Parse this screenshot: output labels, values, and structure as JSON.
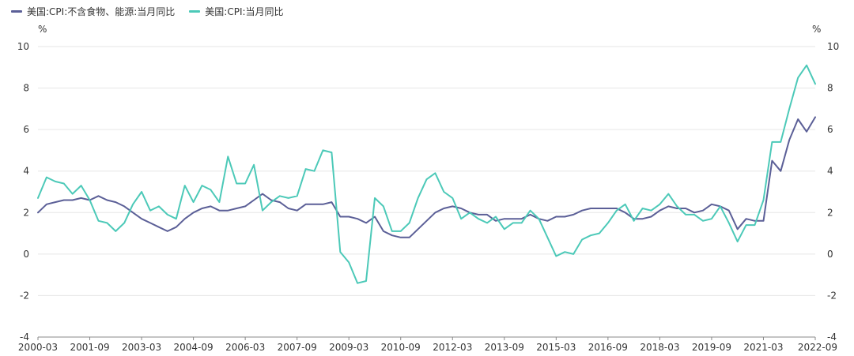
{
  "chart_data": {
    "type": "line",
    "title": "",
    "xlabel": "",
    "ylabel_left": "%",
    "ylabel_right": "%",
    "ylim": [
      -4,
      10
    ],
    "y_ticks": [
      -4,
      -2,
      0,
      2,
      4,
      6,
      8,
      10
    ],
    "x_ticks": [
      "2000-03",
      "2001-09",
      "2003-03",
      "2004-09",
      "2006-03",
      "2007-09",
      "2009-03",
      "2010-09",
      "2012-03",
      "2013-09",
      "2015-03",
      "2016-09",
      "2018-03",
      "2019-09",
      "2021-03",
      "2022-09"
    ],
    "x_range": [
      "2000-03",
      "2022-09"
    ],
    "legend_position": "top-left",
    "grid": true,
    "series": [
      {
        "name": "美国:CPI:不含食物、能源:当月同比",
        "color": "#5b5f97",
        "points": [
          [
            "2000-03",
            2.0
          ],
          [
            "2000-06",
            2.4
          ],
          [
            "2000-09",
            2.5
          ],
          [
            "2000-12",
            2.6
          ],
          [
            "2001-03",
            2.6
          ],
          [
            "2001-06",
            2.7
          ],
          [
            "2001-09",
            2.6
          ],
          [
            "2001-12",
            2.8
          ],
          [
            "2002-03",
            2.6
          ],
          [
            "2002-06",
            2.5
          ],
          [
            "2002-09",
            2.3
          ],
          [
            "2002-12",
            2.0
          ],
          [
            "2003-03",
            1.7
          ],
          [
            "2003-06",
            1.5
          ],
          [
            "2003-09",
            1.3
          ],
          [
            "2003-12",
            1.1
          ],
          [
            "2004-03",
            1.3
          ],
          [
            "2004-06",
            1.7
          ],
          [
            "2004-09",
            2.0
          ],
          [
            "2004-12",
            2.2
          ],
          [
            "2005-03",
            2.3
          ],
          [
            "2005-06",
            2.1
          ],
          [
            "2005-09",
            2.1
          ],
          [
            "2005-12",
            2.2
          ],
          [
            "2006-03",
            2.3
          ],
          [
            "2006-06",
            2.6
          ],
          [
            "2006-09",
            2.9
          ],
          [
            "2006-12",
            2.6
          ],
          [
            "2007-03",
            2.5
          ],
          [
            "2007-06",
            2.2
          ],
          [
            "2007-09",
            2.1
          ],
          [
            "2007-12",
            2.4
          ],
          [
            "2008-03",
            2.4
          ],
          [
            "2008-06",
            2.4
          ],
          [
            "2008-09",
            2.5
          ],
          [
            "2008-12",
            1.8
          ],
          [
            "2009-03",
            1.8
          ],
          [
            "2009-06",
            1.7
          ],
          [
            "2009-09",
            1.5
          ],
          [
            "2009-12",
            1.8
          ],
          [
            "2010-03",
            1.1
          ],
          [
            "2010-06",
            0.9
          ],
          [
            "2010-09",
            0.8
          ],
          [
            "2010-12",
            0.8
          ],
          [
            "2011-03",
            1.2
          ],
          [
            "2011-06",
            1.6
          ],
          [
            "2011-09",
            2.0
          ],
          [
            "2011-12",
            2.2
          ],
          [
            "2012-03",
            2.3
          ],
          [
            "2012-06",
            2.2
          ],
          [
            "2012-09",
            2.0
          ],
          [
            "2012-12",
            1.9
          ],
          [
            "2013-03",
            1.9
          ],
          [
            "2013-06",
            1.6
          ],
          [
            "2013-09",
            1.7
          ],
          [
            "2013-12",
            1.7
          ],
          [
            "2014-03",
            1.7
          ],
          [
            "2014-06",
            1.9
          ],
          [
            "2014-09",
            1.7
          ],
          [
            "2014-12",
            1.6
          ],
          [
            "2015-03",
            1.8
          ],
          [
            "2015-06",
            1.8
          ],
          [
            "2015-09",
            1.9
          ],
          [
            "2015-12",
            2.1
          ],
          [
            "2016-03",
            2.2
          ],
          [
            "2016-06",
            2.2
          ],
          [
            "2016-09",
            2.2
          ],
          [
            "2016-12",
            2.2
          ],
          [
            "2017-03",
            2.0
          ],
          [
            "2017-06",
            1.7
          ],
          [
            "2017-09",
            1.7
          ],
          [
            "2017-12",
            1.8
          ],
          [
            "2018-03",
            2.1
          ],
          [
            "2018-06",
            2.3
          ],
          [
            "2018-09",
            2.2
          ],
          [
            "2018-12",
            2.2
          ],
          [
            "2019-03",
            2.0
          ],
          [
            "2019-06",
            2.1
          ],
          [
            "2019-09",
            2.4
          ],
          [
            "2019-12",
            2.3
          ],
          [
            "2020-03",
            2.1
          ],
          [
            "2020-06",
            1.2
          ],
          [
            "2020-09",
            1.7
          ],
          [
            "2020-12",
            1.6
          ],
          [
            "2021-03",
            1.6
          ],
          [
            "2021-06",
            4.5
          ],
          [
            "2021-09",
            4.0
          ],
          [
            "2021-12",
            5.5
          ],
          [
            "2022-03",
            6.5
          ],
          [
            "2022-06",
            5.9
          ],
          [
            "2022-09",
            6.6
          ]
        ]
      },
      {
        "name": "美国:CPI:当月同比",
        "color": "#4cc9b8",
        "points": [
          [
            "2000-03",
            2.7
          ],
          [
            "2000-06",
            3.7
          ],
          [
            "2000-09",
            3.5
          ],
          [
            "2000-12",
            3.4
          ],
          [
            "2001-03",
            2.9
          ],
          [
            "2001-06",
            3.3
          ],
          [
            "2001-09",
            2.6
          ],
          [
            "2001-12",
            1.6
          ],
          [
            "2002-03",
            1.5
          ],
          [
            "2002-06",
            1.1
          ],
          [
            "2002-09",
            1.5
          ],
          [
            "2002-12",
            2.4
          ],
          [
            "2003-03",
            3.0
          ],
          [
            "2003-06",
            2.1
          ],
          [
            "2003-09",
            2.3
          ],
          [
            "2003-12",
            1.9
          ],
          [
            "2004-03",
            1.7
          ],
          [
            "2004-06",
            3.3
          ],
          [
            "2004-09",
            2.5
          ],
          [
            "2004-12",
            3.3
          ],
          [
            "2005-03",
            3.1
          ],
          [
            "2005-06",
            2.5
          ],
          [
            "2005-09",
            4.7
          ],
          [
            "2005-12",
            3.4
          ],
          [
            "2006-03",
            3.4
          ],
          [
            "2006-06",
            4.3
          ],
          [
            "2006-09",
            2.1
          ],
          [
            "2006-12",
            2.5
          ],
          [
            "2007-03",
            2.8
          ],
          [
            "2007-06",
            2.7
          ],
          [
            "2007-09",
            2.8
          ],
          [
            "2007-12",
            4.1
          ],
          [
            "2008-03",
            4.0
          ],
          [
            "2008-06",
            5.0
          ],
          [
            "2008-09",
            4.9
          ],
          [
            "2008-12",
            0.1
          ],
          [
            "2009-03",
            -0.4
          ],
          [
            "2009-06",
            -1.4
          ],
          [
            "2009-09",
            -1.3
          ],
          [
            "2009-12",
            2.7
          ],
          [
            "2010-03",
            2.3
          ],
          [
            "2010-06",
            1.1
          ],
          [
            "2010-09",
            1.1
          ],
          [
            "2010-12",
            1.5
          ],
          [
            "2011-03",
            2.7
          ],
          [
            "2011-06",
            3.6
          ],
          [
            "2011-09",
            3.9
          ],
          [
            "2011-12",
            3.0
          ],
          [
            "2012-03",
            2.7
          ],
          [
            "2012-06",
            1.7
          ],
          [
            "2012-09",
            2.0
          ],
          [
            "2012-12",
            1.7
          ],
          [
            "2013-03",
            1.5
          ],
          [
            "2013-06",
            1.8
          ],
          [
            "2013-09",
            1.2
          ],
          [
            "2013-12",
            1.5
          ],
          [
            "2014-03",
            1.5
          ],
          [
            "2014-06",
            2.1
          ],
          [
            "2014-09",
            1.7
          ],
          [
            "2014-12",
            0.8
          ],
          [
            "2015-03",
            -0.1
          ],
          [
            "2015-06",
            0.1
          ],
          [
            "2015-09",
            0.0
          ],
          [
            "2015-12",
            0.7
          ],
          [
            "2016-03",
            0.9
          ],
          [
            "2016-06",
            1.0
          ],
          [
            "2016-09",
            1.5
          ],
          [
            "2016-12",
            2.1
          ],
          [
            "2017-03",
            2.4
          ],
          [
            "2017-06",
            1.6
          ],
          [
            "2017-09",
            2.2
          ],
          [
            "2017-12",
            2.1
          ],
          [
            "2018-03",
            2.4
          ],
          [
            "2018-06",
            2.9
          ],
          [
            "2018-09",
            2.3
          ],
          [
            "2018-12",
            1.9
          ],
          [
            "2019-03",
            1.9
          ],
          [
            "2019-06",
            1.6
          ],
          [
            "2019-09",
            1.7
          ],
          [
            "2019-12",
            2.3
          ],
          [
            "2020-03",
            1.5
          ],
          [
            "2020-06",
            0.6
          ],
          [
            "2020-09",
            1.4
          ],
          [
            "2020-12",
            1.4
          ],
          [
            "2021-03",
            2.6
          ],
          [
            "2021-06",
            5.4
          ],
          [
            "2021-09",
            5.4
          ],
          [
            "2021-12",
            7.0
          ],
          [
            "2022-03",
            8.5
          ],
          [
            "2022-06",
            9.1
          ],
          [
            "2022-09",
            8.2
          ]
        ]
      }
    ]
  }
}
